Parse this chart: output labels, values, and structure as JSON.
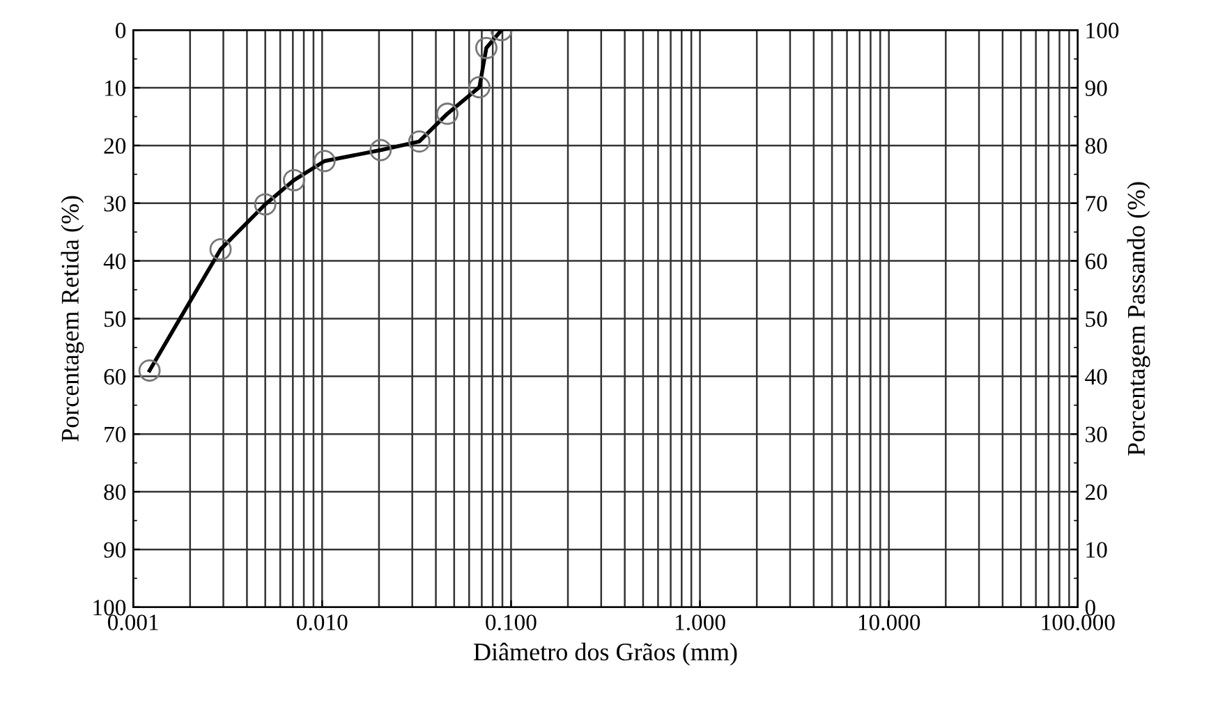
{
  "chart_data": {
    "type": "line",
    "xlabel": "Diâmetro dos Grãos (mm)",
    "ylabel": "Porcentagem Retida (%)",
    "y2label": "Porcentagem Passando (%)",
    "x": [
      0.00122,
      0.0029,
      0.005,
      0.0071,
      0.0103,
      0.0204,
      0.0327,
      0.046,
      0.068,
      0.074,
      0.089
    ],
    "series": [
      {
        "color": "#000000",
        "values": [
          59,
          38,
          30.2,
          26,
          22.7,
          20.8,
          19.3,
          14.5,
          9.9,
          3.1,
          0
        ]
      }
    ],
    "log": "x",
    "xlim": [
      0.001,
      100
    ],
    "xticks": [
      {
        "value": 0.001,
        "label": "0.001"
      },
      {
        "value": 0.01,
        "label": "0.010"
      },
      {
        "value": 0.1,
        "label": "0.100"
      },
      {
        "value": 1,
        "label": "1.000"
      },
      {
        "value": 10,
        "label": "10.000"
      },
      {
        "value": 100,
        "label": "100.000"
      }
    ],
    "ylim": [
      100,
      0
    ],
    "yticks": [
      0,
      10,
      20,
      30,
      40,
      50,
      60,
      70,
      80,
      90,
      100
    ],
    "y2lim": [
      0,
      100
    ],
    "y2ticks": [
      0,
      10,
      20,
      30,
      40,
      50,
      60,
      70,
      80,
      90,
      100
    ],
    "grid": true,
    "marker": "circle",
    "line_style": "solid",
    "legend": false
  }
}
